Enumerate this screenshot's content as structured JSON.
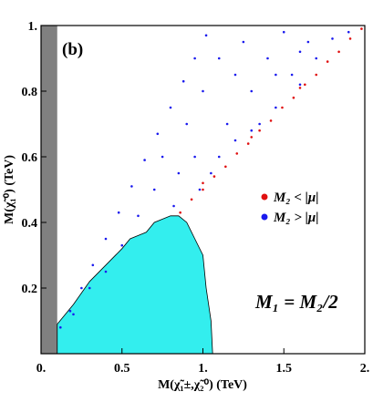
{
  "chart_data": {
    "type": "scatter",
    "panel_label": "(b)",
    "annotation": "M₁ = M₂/2",
    "x_label": "M(χ̃₁±,χ̃₂⁰) (TeV)",
    "y_label": "M(χ̃₁⁰) (TeV)",
    "xlim": [
      0,
      2
    ],
    "ylim": [
      0,
      1
    ],
    "xticks": [
      {
        "value": 0,
        "label": "0."
      },
      0.5,
      {
        "value": 1,
        "label": "1."
      },
      1.5,
      {
        "value": 2,
        "label": "2."
      }
    ],
    "yticks": [
      0.2,
      0.4,
      0.6,
      0.8,
      {
        "value": 1,
        "label": "1."
      }
    ],
    "excluded_band": {
      "x": [
        0,
        0.1
      ],
      "color": "#808080"
    },
    "region": {
      "color": "#33eeee",
      "x": [
        0.1,
        0.2,
        0.3,
        0.4,
        0.5,
        0.55,
        0.6,
        0.65,
        0.7,
        0.75,
        0.8,
        0.85,
        0.9,
        0.95,
        1.0,
        1.02,
        1.05,
        1.06,
        0.1
      ],
      "y": [
        0.09,
        0.15,
        0.22,
        0.27,
        0.32,
        0.35,
        0.36,
        0.37,
        0.4,
        0.41,
        0.42,
        0.42,
        0.4,
        0.35,
        0.3,
        0.2,
        0.1,
        0,
        0
      ]
    },
    "series": [
      {
        "name": "M₂ < |μ|",
        "color": "#e01010",
        "x": [
          0.86,
          0.93,
          1.0,
          1.07,
          1.14,
          1.21,
          1.28,
          1.35,
          1.42,
          1.49,
          1.56,
          1.63,
          1.7,
          1.77,
          1.84,
          1.91,
          1.98,
          1.0,
          1.3,
          1.6
        ],
        "y": [
          0.43,
          0.47,
          0.5,
          0.54,
          0.57,
          0.61,
          0.64,
          0.68,
          0.71,
          0.75,
          0.78,
          0.82,
          0.85,
          0.89,
          0.92,
          0.96,
          0.99,
          0.52,
          0.66,
          0.81
        ]
      },
      {
        "name": "M₂ > |μ|",
        "color": "#1a1aee",
        "x": [
          0.12,
          0.18,
          0.25,
          0.32,
          0.4,
          0.48,
          0.56,
          0.64,
          0.72,
          0.8,
          0.88,
          0.95,
          1.02,
          0.6,
          0.7,
          0.75,
          0.85,
          0.9,
          0.95,
          1.0,
          1.05,
          1.1,
          1.15,
          1.2,
          1.25,
          1.3,
          1.35,
          1.4,
          1.45,
          1.5,
          1.55,
          1.6,
          1.65,
          1.7,
          1.8,
          1.9,
          1.1,
          1.3,
          0.98,
          0.82,
          1.2,
          1.45,
          1.6,
          0.4,
          0.5,
          0.3,
          0.2
        ],
        "y": [
          0.08,
          0.13,
          0.2,
          0.27,
          0.35,
          0.43,
          0.51,
          0.59,
          0.67,
          0.75,
          0.83,
          0.9,
          0.97,
          0.42,
          0.5,
          0.6,
          0.55,
          0.7,
          0.6,
          0.8,
          0.55,
          0.9,
          0.7,
          0.65,
          0.95,
          0.8,
          0.7,
          0.9,
          0.75,
          0.98,
          0.85,
          0.82,
          0.95,
          0.9,
          0.96,
          0.98,
          0.6,
          0.68,
          0.5,
          0.45,
          0.85,
          0.85,
          0.92,
          0.25,
          0.33,
          0.2,
          0.12
        ]
      }
    ],
    "legend": "right"
  }
}
